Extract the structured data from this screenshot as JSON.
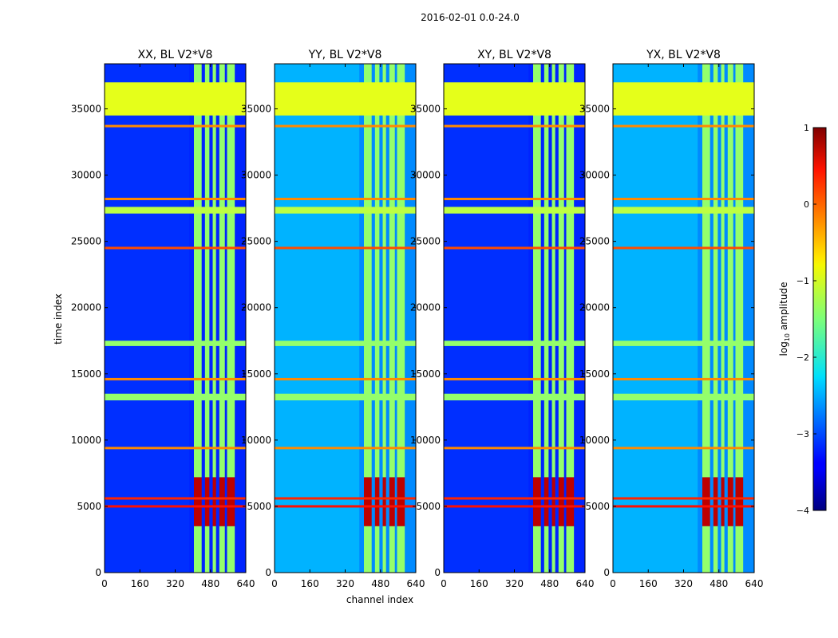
{
  "suptitle": "2016-02-01 0.0-24.0",
  "chart_data": {
    "type": "heatmap",
    "xlabel": "channel index",
    "ylabel": "time index",
    "xlim": [
      0,
      640
    ],
    "ylim": [
      0,
      38400
    ],
    "xticks": [
      0,
      160,
      320,
      480,
      640
    ],
    "yticks": [
      0,
      5000,
      10000,
      15000,
      20000,
      25000,
      30000,
      35000
    ],
    "panels": [
      {
        "title": "XX, BL V2*V8",
        "background_level": -3.2
      },
      {
        "title": "YY, BL V2*V8",
        "background_level": -2.7
      },
      {
        "title": "XY, BL V2*V8",
        "background_level": -3.2
      },
      {
        "title": "YX, BL V2*V8",
        "background_level": -2.7
      }
    ],
    "rfi_channel_bands": [
      [
        405,
        440
      ],
      [
        455,
        475
      ],
      [
        490,
        505
      ],
      [
        520,
        545
      ],
      [
        555,
        590
      ]
    ],
    "rfi_channel_band_level": -1.4,
    "flagged_time_blocks": [
      {
        "start": 34500,
        "end": 37000,
        "level": -1.0
      },
      {
        "start": 27100,
        "end": 27600,
        "level": -1.2
      },
      {
        "start": 17100,
        "end": 17500,
        "level": -1.4
      },
      {
        "start": 13000,
        "end": 13500,
        "level": -1.4
      }
    ],
    "rfi_time_lines": [
      {
        "t": 5000,
        "level": 0.3
      },
      {
        "t": 5600,
        "level": 0.2
      },
      {
        "t": 9400,
        "level": -0.3
      },
      {
        "t": 14600,
        "level": -0.3
      },
      {
        "t": 24500,
        "level": 0.0
      },
      {
        "t": 28200,
        "level": -0.3
      },
      {
        "t": 33700,
        "level": -0.3
      }
    ],
    "strong_region": {
      "t_start": 3500,
      "t_end": 7200,
      "level": 0.7
    },
    "colorbar": {
      "label_prefix": "log",
      "label_sub": "10",
      "label_suffix": " amplitude",
      "range": [
        -4,
        1
      ],
      "ticks": [
        "1",
        "0",
        "−1",
        "−2",
        "−3",
        "−4"
      ],
      "colormap": "jet"
    }
  }
}
